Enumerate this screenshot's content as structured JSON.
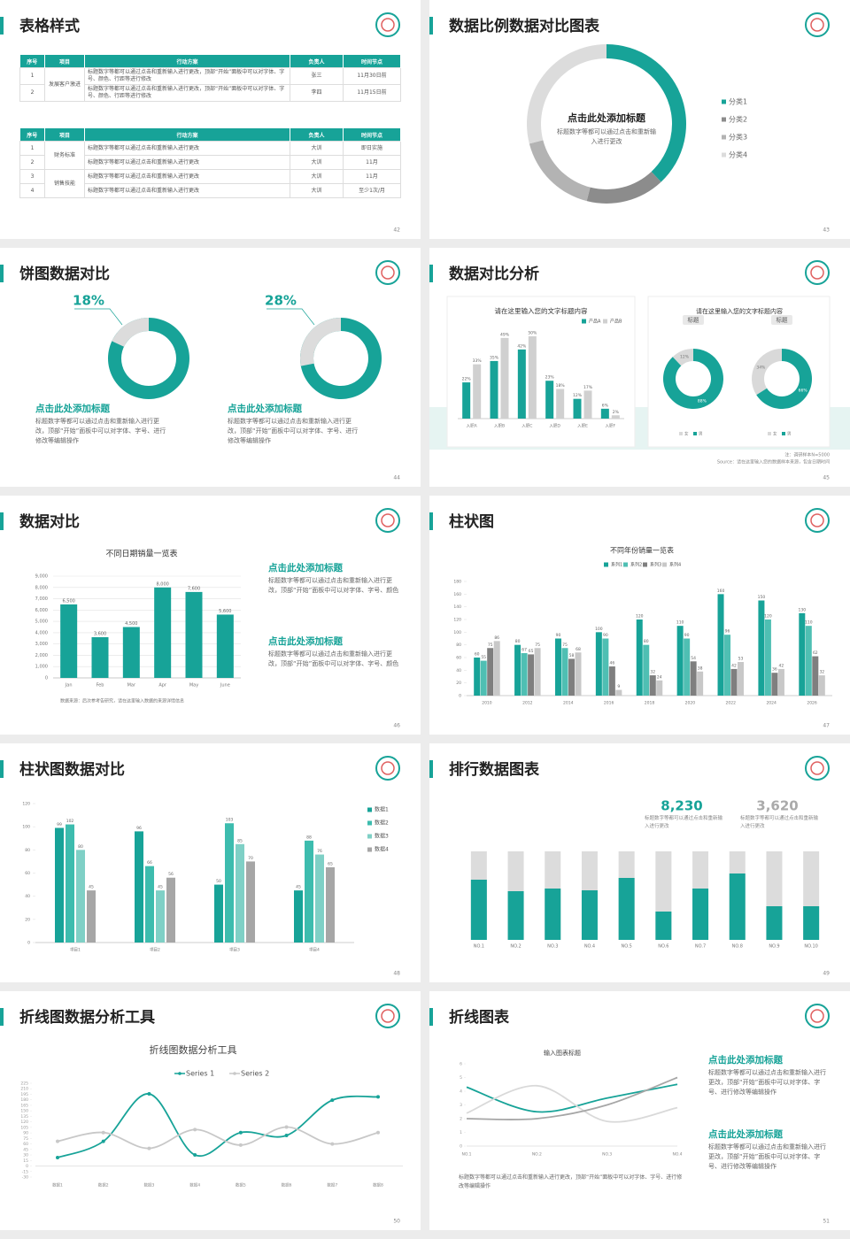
{
  "slides": [
    {
      "title": "表格样式",
      "page": 42,
      "tables": [
        {
          "header": [
            "序号",
            "项目",
            "行动方案",
            "负责人",
            "时间节点"
          ],
          "rows": [
            [
              "1",
              "发展客户激进",
              "标题数字等都可以通过点击和重新输入进行更改，顶部“开始”面板中可以对字体、字号、颜色、行距等进行修改",
              "张三",
              "11月30日前"
            ],
            [
              "2",
              null,
              "标题数字等都可以通过点击和重新输入进行更改，顶部“开始”面板中可以对字体、字号、颜色、行距等进行修改",
              "李四",
              "11月15日前"
            ]
          ]
        },
        {
          "header": [
            "序号",
            "项目",
            "行动方案",
            "负责人",
            "时间节点"
          ],
          "rows": [
            [
              "1",
              "财务标准",
              "标题数字等都可以通过点击和重新输入进行更改",
              "大训",
              "即日实施"
            ],
            [
              "2",
              null,
              "标题数字等都可以通过点击和重新输入进行更改",
              "大训",
              "11月"
            ],
            [
              "3",
              "销售技能",
              "标题数字等都可以通过点击和重新输入进行更改",
              "大训",
              "11月"
            ],
            [
              "4",
              null,
              "标题数字等都可以通过点击和重新输入进行更改",
              "大训",
              "至少1次/月"
            ]
          ]
        }
      ]
    },
    {
      "title": "数据比例数据对比图表",
      "page": 43,
      "chart_data": {
        "type": "donut",
        "heading": "点击此处添加标题",
        "text": "标题数字等都可以通过点击和重新输入进行更改",
        "categories": [
          "分类1",
          "分类2",
          "分类3",
          "分类4"
        ],
        "values": [
          38,
          16,
          17,
          29
        ],
        "colors": [
          "#17a398",
          "#8c8c8c",
          "#b3b3b3",
          "#dcdcdc"
        ]
      }
    },
    {
      "title": "饼图数据对比",
      "page": 44,
      "items": [
        {
          "heading": "点击此处添加标题",
          "text": "标题数字等都可以通过点击和重新输入进行更改，顶部“开始”面板中可以对字体、字号、进行修改等编辑操作",
          "chart_data": {
            "type": "pie",
            "values": [
              18
            ],
            "value_labels": [
              "18%"
            ],
            "color": "#dcdcdc",
            "ring_color": "#17a398"
          }
        },
        {
          "heading": "点击此处添加标题",
          "text": "标题数字等都可以通过点击和重新输入进行更改，顶部“开始”面板中可以对字体、字号、进行修改等编辑操作",
          "chart_data": {
            "type": "pie",
            "values": [
              28
            ],
            "value_labels": [
              "28%"
            ],
            "color": "#dcdcdc",
            "ring_color": "#17a398"
          }
        }
      ]
    },
    {
      "title": "数据对比分析",
      "page": 45,
      "chart_data": [
        {
          "type": "bar",
          "title": "请在这里输入您的文字标题内容",
          "categories": [
            "入职A",
            "入职B",
            "入职C",
            "入职D",
            "入职E",
            "入职F"
          ],
          "legend": "top",
          "series": [
            {
              "name": "产品A",
              "color": "#17a398",
              "values": [
                22,
                35,
                42,
                23,
                12,
                6
              ],
              "value_labels": [
                "22%",
                "35%",
                "42%",
                "23%",
                "12%",
                "6%"
              ]
            },
            {
              "name": "产品B",
              "color": "#d0d0d0",
              "values": [
                33,
                49,
                50,
                18,
                17,
                2
              ],
              "value_labels": [
                "33%",
                "49%",
                "50%",
                "18%",
                "17%",
                "2%"
              ]
            }
          ]
        },
        {
          "type": "donut-pair",
          "title": "请在这里输入您的文字标题内容",
          "categories": [
            "女",
            "男"
          ],
          "colors": [
            "#d9d9d9",
            "#17a398"
          ],
          "series": [
            {
              "name": "标题",
              "values": [
                12,
                88
              ],
              "value_labels": [
                "12%",
                "88%"
              ]
            },
            {
              "name": "标题",
              "values": [
                34,
                66
              ],
              "value_labels": [
                "34%",
                "66%"
              ]
            }
          ]
        }
      ],
      "notes": [
        "注：调研样本N=5000",
        "Source：请在这里输入您的数据样本来源，包含日期时间"
      ]
    },
    {
      "title": "数据对比",
      "page": 46,
      "chart_data": {
        "type": "bar",
        "title": "不同日期销量一览表",
        "categories": [
          "Jan",
          "Feb",
          "Mar",
          "Apr",
          "May",
          "June"
        ],
        "values": [
          6500,
          3600,
          4500,
          8000,
          7600,
          5600
        ],
        "value_labels": [
          "6,500",
          "3,600",
          "4,500",
          "8,000",
          "7,600",
          "5,600"
        ],
        "color": "#17a398",
        "ylim": [
          0,
          9000
        ],
        "yticks": [
          0,
          {
            "value": 1000,
            "label": "1,000"
          },
          {
            "value": 2000,
            "label": "2,000"
          },
          {
            "value": 3000,
            "label": "3,000"
          },
          {
            "value": 4000,
            "label": "4,000"
          },
          {
            "value": 5000,
            "label": "5,000"
          },
          {
            "value": 6000,
            "label": "6,000"
          },
          {
            "value": 7000,
            "label": "7,000"
          },
          {
            "value": 8000,
            "label": "8,000"
          },
          {
            "value": 9000,
            "label": "9,000"
          }
        ],
        "grid": true,
        "source": "数据来源：后次参考告研究，请在这里输入数据的来源详情信息"
      },
      "blocks": [
        {
          "heading": "点击此处添加标题",
          "text": "标题数字等都可以通过点击和重新输入进行更改，顶部“开始”面板中可以对字体、字号、颜色"
        },
        {
          "heading": "点击此处添加标题",
          "text": "标题数字等都可以通过点击和重新输入进行更改，顶部“开始”面板中可以对字体、字号、颜色"
        }
      ]
    },
    {
      "title": "柱状图",
      "page": 47,
      "chart_data": {
        "type": "bar",
        "title": "不同年份销量一览表",
        "categories": [
          "2010",
          "2012",
          "2014",
          "2016",
          "2018",
          "2020",
          "2022",
          "2024",
          "2026"
        ],
        "legend": "top",
        "data_labels": true,
        "ylim": [
          0,
          180
        ],
        "yticks": [
          0,
          20,
          40,
          60,
          80,
          100,
          120,
          140,
          160,
          180
        ],
        "series": [
          {
            "name": "系列1",
            "color": "#17a398",
            "values": [
              60,
              80,
              90,
              100,
              120,
              110,
              160,
              150,
              130
            ]
          },
          {
            "name": "系列2",
            "color": "#4fbfb3",
            "values": [
              55,
              67,
              75,
              90,
              80,
              90,
              96,
              120,
              110
            ]
          },
          {
            "name": "系列3",
            "color": "#7f7f7f",
            "values": [
              75,
              65,
              58,
              46,
              32,
              54,
              42,
              36,
              62
            ]
          },
          {
            "name": "系列4",
            "color": "#c8c8c8",
            "values": [
              86,
              75,
              68,
              9,
              24,
              38,
              53,
              42,
              32
            ]
          }
        ]
      }
    },
    {
      "title": "柱状图数据对比",
      "page": 48,
      "chart_data": {
        "type": "bar",
        "categories": [
          "项目1",
          "项目2",
          "项目3",
          "项目4"
        ],
        "legend": "right",
        "data_labels": true,
        "ylim": [
          0,
          120
        ],
        "yticks": [
          0,
          20,
          40,
          60,
          80,
          100,
          120
        ],
        "series": [
          {
            "name": "数据1",
            "color": "#17a398",
            "values": [
              99,
              96,
              50,
              45
            ]
          },
          {
            "name": "数据2",
            "color": "#3dbcae",
            "values": [
              102,
              66,
              103,
              88
            ]
          },
          {
            "name": "数据3",
            "color": "#7fd0c6",
            "values": [
              80,
              45,
              85,
              76
            ]
          },
          {
            "name": "数据4",
            "color": "#a6a6a6",
            "values": [
              45,
              56,
              70,
              65
            ]
          }
        ]
      }
    },
    {
      "title": "排行数据图表",
      "page": 49,
      "stats": [
        {
          "value": "8,230",
          "text": "标题数字等都可以通过点击和重新输入进行更改"
        },
        {
          "value": "3,620",
          "text": "标题数字等都可以通过点击和重新输入进行更改"
        }
      ],
      "chart_data": {
        "type": "share-bar",
        "categories": [
          "NO.1",
          "NO.2",
          "NO.3",
          "NO.4",
          "NO.5",
          "NO.6",
          "NO.7",
          "NO.8",
          "NO.9",
          "NO.10"
        ],
        "values": [
          68,
          55,
          58,
          56,
          70,
          32,
          58,
          75,
          38,
          38
        ],
        "color": "#17a398",
        "background": "#dcdcdc"
      }
    },
    {
      "title": "折线图数据分析工具",
      "page": 50,
      "chart_data": {
        "type": "line",
        "title": "折线图数据分析工具",
        "categories": [
          "数据1",
          "数据2",
          "数据3",
          "数据4",
          "数据5",
          "数据6",
          "数据7",
          "数据8"
        ],
        "legend": "top",
        "smooth": true,
        "markers": true,
        "ylim": [
          -30,
          225
        ],
        "yticks": [
          -30,
          -15,
          0,
          15,
          30,
          45,
          60,
          75,
          90,
          105,
          120,
          135,
          150,
          165,
          180,
          195,
          210,
          225
        ],
        "series": [
          {
            "name": "Series 1",
            "color": "#17a398",
            "values": [
              23,
              67,
              196,
              30,
              91,
              83,
              179,
              188
            ]
          },
          {
            "name": "Series 2",
            "color": "#c8c8c8",
            "values": [
              67,
              91,
              48,
              99,
              57,
              106,
              60,
              91
            ]
          }
        ]
      }
    },
    {
      "title": "折线图表",
      "page": 51,
      "chart_data": {
        "type": "line",
        "title": "输入图表标题",
        "categories": [
          "NO.1",
          "NO.2",
          "NO.3",
          "NO.4"
        ],
        "smooth": true,
        "markers": false,
        "ylim": [
          0,
          6
        ],
        "yticks": [
          0,
          1,
          2,
          3,
          4,
          5,
          6
        ],
        "series": [
          {
            "color": "#17a398",
            "values": [
              4.3,
              2.5,
              3.5,
              4.5
            ]
          },
          {
            "color": "#d9d9d9",
            "values": [
              2.4,
              4.4,
              1.8,
              2.8
            ]
          },
          {
            "color": "#a6a6a6",
            "values": [
              2,
              2,
              3,
              5
            ]
          }
        ]
      },
      "text": "标题数字等都可以通过点击和重新输入进行更改，顶部“开始”面板中可以对字体、字号、进行修改等编辑操作",
      "blocks": [
        {
          "heading": "点击此处添加标题",
          "text": "标题数字等都可以通过点击和重新输入进行更改，顶部“开始”面板中可以对字体、字号、进行修改等编辑操作"
        },
        {
          "heading": "点击此处添加标题",
          "text": "标题数字等都可以通过点击和重新输入进行更改，顶部“开始”面板中可以对字体、字号、进行修改等编辑操作"
        }
      ]
    }
  ]
}
